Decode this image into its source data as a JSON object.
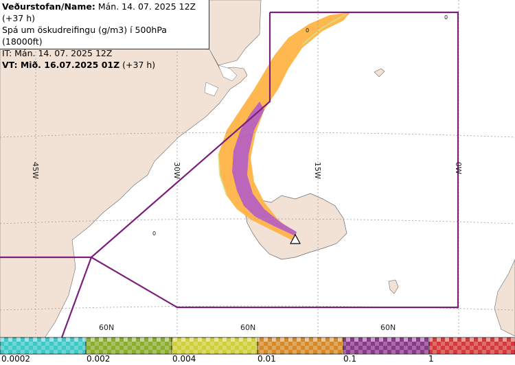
{
  "header": {
    "line1_bold": "Veðurstofan/Name:",
    "line1_rest": " Mán. 14. 07. 2025 12Z (+37 h)",
    "line2": "Spá um öskudreifingu (g/m3) í 500hPa (18000ft)",
    "line3": "IT: Mán. 14. 07. 2025 12Z",
    "line4_bold": "VT: Mið. 16.07.2025 01Z",
    "line4_rest": " (+37 h)"
  },
  "graticule": {
    "lon_labels": [
      "45W",
      "30W",
      "15W",
      "0W"
    ],
    "lat_labels": [
      "60N",
      "60N",
      "60N"
    ]
  },
  "contour_zero_labels": [
    "0",
    "0",
    "0"
  ],
  "legend": {
    "labels": [
      "0.0002",
      "0.002",
      "0.004",
      "0.01",
      "0.1",
      "1"
    ],
    "colors": [
      "#3fc8c8",
      "#8aad2e",
      "#cfcf3a",
      "#d58a2a",
      "#8a3a8a",
      "#d43a3a"
    ]
  },
  "colors": {
    "land": "#f2e2d5",
    "sea": "#ffffff",
    "boundary": "#7a1f7a",
    "ash_orange": "#ffb347",
    "ash_purple": "#bb66bb"
  },
  "volcano_icon": "triangle-volcano-icon"
}
